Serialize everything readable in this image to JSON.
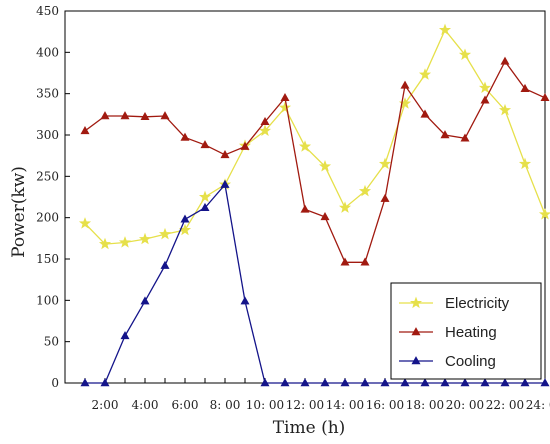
{
  "chart_data": {
    "type": "line",
    "xlabel": "Time (h)",
    "ylabel": "Power(kw)",
    "ylim": [
      0,
      450
    ],
    "yticks": [
      0,
      50,
      100,
      150,
      200,
      250,
      300,
      350,
      400,
      450
    ],
    "xlim": [
      0,
      24
    ],
    "x": [
      1,
      2,
      3,
      4,
      5,
      6,
      7,
      8,
      9,
      10,
      11,
      12,
      13,
      14,
      15,
      16,
      17,
      18,
      19,
      20,
      21,
      22,
      23,
      24
    ],
    "xtick_labels": [
      {
        "x": 2,
        "label": "2:00"
      },
      {
        "x": 4,
        "label": "4:00"
      },
      {
        "x": 6,
        "label": "6:00"
      },
      {
        "x": 8,
        "label": "8: 00"
      },
      {
        "x": 10,
        "label": "10: 00"
      },
      {
        "x": 12,
        "label": "12: 00"
      },
      {
        "x": 14,
        "label": "14: 00"
      },
      {
        "x": 16,
        "label": "16: 00"
      },
      {
        "x": 18,
        "label": "18: 00"
      },
      {
        "x": 20,
        "label": "20: 00"
      },
      {
        "x": 22,
        "label": "22: 00"
      },
      {
        "x": 24,
        "label": "24: 00"
      }
    ],
    "legend_position": "bottom-right",
    "grid": false,
    "series": [
      {
        "name": "Electricity",
        "color": "#e6e04a",
        "marker": "star",
        "values": [
          193,
          168,
          170,
          174,
          180,
          185,
          225,
          240,
          287,
          305,
          333,
          286,
          262,
          212,
          232,
          265,
          338,
          373,
          427,
          397,
          357,
          330,
          265,
          204
        ]
      },
      {
        "name": "Heating",
        "color": "#a11a10",
        "marker": "triangle",
        "values": [
          305,
          323,
          323,
          322,
          323,
          297,
          288,
          276,
          286,
          316,
          345,
          210,
          201,
          146,
          146,
          223,
          360,
          325,
          300,
          296,
          342,
          389,
          356,
          345
        ]
      },
      {
        "name": "Cooling",
        "color": "#14148a",
        "marker": "triangle",
        "values": [
          0,
          0,
          57,
          99,
          142,
          198,
          212,
          240,
          99,
          0,
          0,
          0,
          0,
          0,
          0,
          0,
          0,
          0,
          0,
          0,
          0,
          0,
          0,
          0
        ]
      }
    ]
  }
}
